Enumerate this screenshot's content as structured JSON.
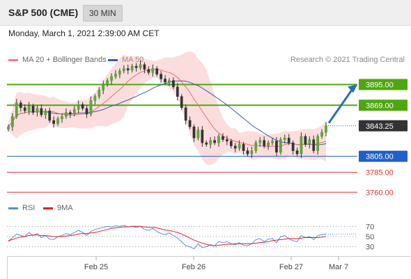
{
  "header": {
    "title": "S&P 500 (CME)",
    "timeframe": "30 MIN"
  },
  "timestamp": "Monday, March 1, 2021 2:39:00 AM CET",
  "legend": {
    "ma20": {
      "label": "MA 20 + Bollinger Bands",
      "color": "#f08080"
    },
    "ma50": {
      "label": "MA 50",
      "color": "#3a5aa8"
    },
    "credit": "Research © 2021 Trading Central"
  },
  "rsi_legend": {
    "rsi": {
      "label": "RSI",
      "color": "#5b8bd8"
    },
    "ma9": {
      "label": "9MA",
      "color": "#e02020"
    }
  },
  "chart_data": [
    {
      "type": "line",
      "panel": "price",
      "ylim": [
        3755,
        3905
      ],
      "x_ticks": [
        "Feb 25",
        "Feb 26",
        "Feb 27",
        "Mar 7"
      ],
      "current_price": {
        "value": 3843.25,
        "label": "3843.25",
        "color": "#333333"
      },
      "levels": [
        {
          "value": 3895.0,
          "label": "3895.00",
          "color": "#4ea70e",
          "kind": "resistance"
        },
        {
          "value": 3869.0,
          "label": "3869.00",
          "color": "#4ea70e",
          "kind": "resistance"
        },
        {
          "value": 3805.0,
          "label": "3805.00",
          "color": "#2060c8",
          "kind": "pivot"
        },
        {
          "value": 3785.0,
          "label": "3785.00",
          "color": "#e03030",
          "kind": "support"
        },
        {
          "value": 3760.0,
          "label": "3760.00",
          "color": "#e03030",
          "kind": "support"
        }
      ],
      "close_series": [
        3842,
        3855,
        3872,
        3866,
        3862,
        3868,
        3860,
        3865,
        3857,
        3862,
        3850,
        3846,
        3852,
        3855,
        3860,
        3858,
        3864,
        3870,
        3865,
        3858,
        3875,
        3880,
        3888,
        3895,
        3900,
        3905,
        3908,
        3912,
        3915,
        3913,
        3918,
        3916,
        3920,
        3914,
        3910,
        3915,
        3908,
        3902,
        3898,
        3900,
        3892,
        3880,
        3866,
        3850,
        3842,
        3828,
        3838,
        3822,
        3820,
        3825,
        3822,
        3830,
        3826,
        3824,
        3818,
        3815,
        3820,
        3812,
        3808,
        3812,
        3822,
        3825,
        3818,
        3822,
        3824,
        3810,
        3826,
        3828,
        3822,
        3812,
        3808,
        3830,
        3820,
        3826,
        3812,
        3830,
        3835,
        3843
      ],
      "projection": {
        "from": 3843.25,
        "to": 3895.0,
        "color": "#2a6cb8"
      }
    },
    {
      "type": "line",
      "panel": "rsi",
      "ylim": [
        20,
        80
      ],
      "y_ticks": [
        70,
        50,
        30
      ],
      "series": [
        {
          "name": "RSI",
          "color": "#5b8bd8",
          "values": [
            40,
            48,
            55,
            52,
            50,
            58,
            52,
            56,
            48,
            52,
            45,
            44,
            50,
            52,
            56,
            54,
            58,
            62,
            58,
            52,
            60,
            64,
            66,
            68,
            70,
            69,
            71,
            70,
            72,
            69,
            70,
            68,
            70,
            64,
            62,
            66,
            60,
            56,
            54,
            57,
            52,
            47,
            40,
            32,
            30,
            26,
            36,
            28,
            30,
            34,
            32,
            40,
            38,
            40,
            36,
            34,
            38,
            33,
            32,
            36,
            44,
            46,
            40,
            45,
            46,
            38,
            50,
            52,
            46,
            42,
            40,
            52,
            48,
            50,
            44,
            52,
            54,
            55
          ]
        },
        {
          "name": "9MA",
          "color": "#e02020",
          "values": [
            42,
            44,
            47,
            49,
            50,
            52,
            53,
            53,
            52,
            52,
            51,
            50,
            50,
            50,
            51,
            52,
            53,
            55,
            56,
            56,
            57,
            58,
            60,
            62,
            64,
            66,
            67,
            68,
            69,
            69,
            70,
            70,
            70,
            69,
            68,
            68,
            67,
            65,
            63,
            62,
            60,
            58,
            55,
            51,
            47,
            43,
            40,
            37,
            35,
            33,
            32,
            33,
            34,
            35,
            35,
            36,
            36,
            36,
            36,
            36,
            37,
            38,
            39,
            40,
            42,
            43,
            44,
            45,
            46,
            46,
            46,
            47,
            48,
            48,
            48,
            48,
            49,
            50
          ]
        }
      ]
    }
  ]
}
